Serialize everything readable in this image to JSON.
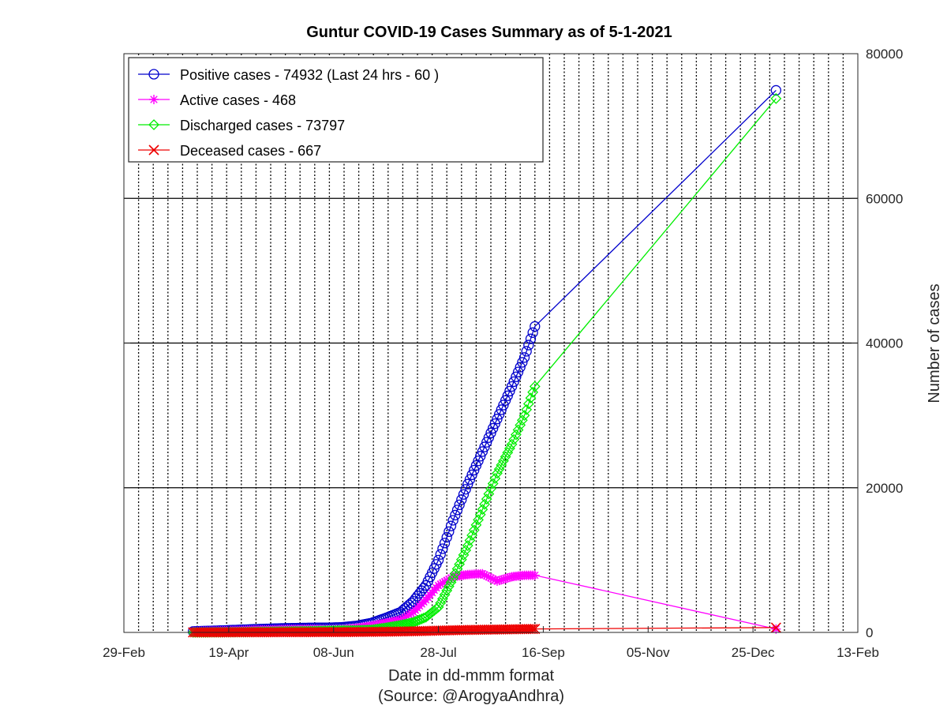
{
  "chart_data": {
    "type": "line",
    "title": "Guntur COVID-19 Cases Summary as of 5-1-2021",
    "xlabel": "Date in dd-mmm format",
    "xlabel_source": "(Source: @ArogyaAndhra)",
    "ylabel": "Number of cases",
    "ylim": [
      0,
      80000
    ],
    "xlim": [
      "2020-02-29",
      "2021-02-13"
    ],
    "x_ticks": [
      "29-Feb",
      "19-Apr",
      "08-Jun",
      "28-Jul",
      "16-Sep",
      "05-Nov",
      "25-Dec",
      "13-Feb"
    ],
    "y_ticks": [
      "0",
      "20000",
      "40000",
      "60000",
      "80000"
    ],
    "y_axis_position": "right",
    "grid": "on",
    "legend_position": "top-left",
    "series": [
      {
        "name": "Positive cases - 74932 (Last 24 hrs - 60 )",
        "color": "#0000cc",
        "marker": "circle",
        "points": [
          [
            "2020-04-02",
            140
          ],
          [
            "2020-04-15",
            250
          ],
          [
            "2020-04-30",
            420
          ],
          [
            "2020-05-15",
            560
          ],
          [
            "2020-05-29",
            630
          ],
          [
            "2020-06-05",
            640
          ],
          [
            "2020-06-12",
            700
          ],
          [
            "2020-06-19",
            900
          ],
          [
            "2020-06-26",
            1300
          ],
          [
            "2020-07-03",
            2000
          ],
          [
            "2020-07-10",
            2800
          ],
          [
            "2020-07-16",
            4300
          ],
          [
            "2020-07-22",
            6500
          ],
          [
            "2020-07-28",
            10000
          ],
          [
            "2020-08-04",
            15500
          ],
          [
            "2020-08-11",
            20500
          ],
          [
            "2020-08-18",
            25000
          ],
          [
            "2020-08-25",
            29500
          ],
          [
            "2020-09-01",
            34000
          ],
          [
            "2020-09-07",
            38000
          ],
          [
            "2020-09-12",
            42300
          ],
          [
            "2021-01-05",
            74932
          ]
        ]
      },
      {
        "name": "Active cases - 468",
        "color": "#ff00ff",
        "marker": "star",
        "points": [
          [
            "2020-04-02",
            130
          ],
          [
            "2020-04-15",
            200
          ],
          [
            "2020-04-30",
            320
          ],
          [
            "2020-05-15",
            400
          ],
          [
            "2020-05-29",
            430
          ],
          [
            "2020-06-05",
            380
          ],
          [
            "2020-06-12",
            400
          ],
          [
            "2020-06-19",
            600
          ],
          [
            "2020-06-26",
            900
          ],
          [
            "2020-07-03",
            1300
          ],
          [
            "2020-07-10",
            1700
          ],
          [
            "2020-07-16",
            2800
          ],
          [
            "2020-07-22",
            4500
          ],
          [
            "2020-07-28",
            6500
          ],
          [
            "2020-08-04",
            7700
          ],
          [
            "2020-08-11",
            8000
          ],
          [
            "2020-08-18",
            8100
          ],
          [
            "2020-08-25",
            7100
          ],
          [
            "2020-09-01",
            7700
          ],
          [
            "2020-09-07",
            7900
          ],
          [
            "2020-09-12",
            7900
          ],
          [
            "2021-01-05",
            468
          ]
        ]
      },
      {
        "name": "Discharged cases - 73797",
        "color": "#00ee00",
        "marker": "diamond",
        "points": [
          [
            "2020-04-02",
            0
          ],
          [
            "2020-04-15",
            20
          ],
          [
            "2020-04-30",
            60
          ],
          [
            "2020-05-15",
            120
          ],
          [
            "2020-05-29",
            170
          ],
          [
            "2020-06-05",
            220
          ],
          [
            "2020-06-12",
            260
          ],
          [
            "2020-06-19",
            280
          ],
          [
            "2020-06-26",
            350
          ],
          [
            "2020-07-03",
            650
          ],
          [
            "2020-07-10",
            1000
          ],
          [
            "2020-07-16",
            1400
          ],
          [
            "2020-07-22",
            2100
          ],
          [
            "2020-07-28",
            3500
          ],
          [
            "2020-08-04",
            7500
          ],
          [
            "2020-08-11",
            12000
          ],
          [
            "2020-08-18",
            17000
          ],
          [
            "2020-08-25",
            22000
          ],
          [
            "2020-09-01",
            26000
          ],
          [
            "2020-09-07",
            30000
          ],
          [
            "2020-09-12",
            34000
          ],
          [
            "2021-01-05",
            73797
          ]
        ]
      },
      {
        "name": "Deceased cases - 667",
        "color": "#ee0000",
        "marker": "x",
        "points": [
          [
            "2020-04-02",
            5
          ],
          [
            "2020-04-15",
            10
          ],
          [
            "2020-04-30",
            20
          ],
          [
            "2020-05-15",
            30
          ],
          [
            "2020-05-29",
            40
          ],
          [
            "2020-06-05",
            45
          ],
          [
            "2020-06-12",
            50
          ],
          [
            "2020-06-19",
            60
          ],
          [
            "2020-06-26",
            80
          ],
          [
            "2020-07-03",
            100
          ],
          [
            "2020-07-10",
            130
          ],
          [
            "2020-07-16",
            160
          ],
          [
            "2020-07-22",
            200
          ],
          [
            "2020-07-28",
            250
          ],
          [
            "2020-08-04",
            300
          ],
          [
            "2020-08-11",
            340
          ],
          [
            "2020-08-18",
            370
          ],
          [
            "2020-08-25",
            400
          ],
          [
            "2020-09-01",
            430
          ],
          [
            "2020-09-07",
            460
          ],
          [
            "2020-09-12",
            480
          ],
          [
            "2021-01-05",
            667
          ]
        ]
      }
    ]
  }
}
